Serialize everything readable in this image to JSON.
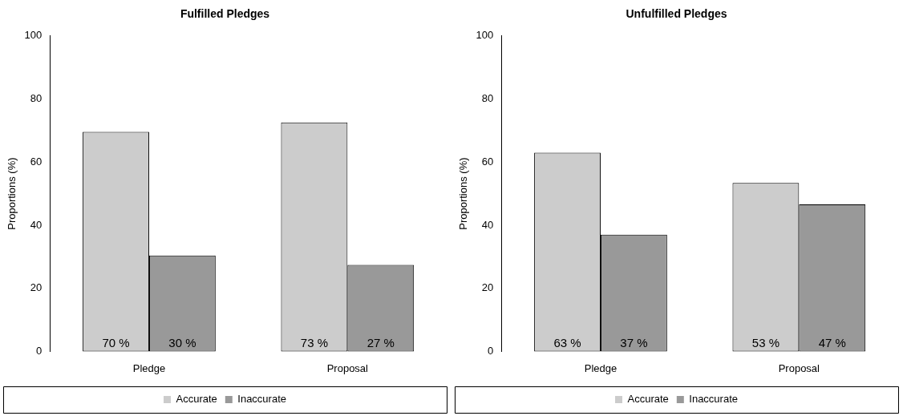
{
  "chart_data": [
    {
      "type": "bar",
      "title": "Fulfilled Pledges",
      "ylabel": "Proportions (%)",
      "categories": [
        "Pledge",
        "Proposal"
      ],
      "ylim": [
        0,
        100
      ],
      "yticks": [
        0,
        20,
        40,
        60,
        80,
        100
      ],
      "grid": false,
      "legend": "bottom",
      "series": [
        {
          "name": "Accurate",
          "color": "#cccccc",
          "values": [
            69.6,
            72.6
          ],
          "value_labels": [
            "70 %",
            "73 %"
          ]
        },
        {
          "name": "Inaccurate",
          "color": "#999999",
          "values": [
            30.4,
            27.4
          ],
          "value_labels": [
            "30 %",
            "27 %"
          ]
        }
      ]
    },
    {
      "type": "bar",
      "title": "Unfulfilled Pledges",
      "ylabel": "Proportions (%)",
      "categories": [
        "Pledge",
        "Proposal"
      ],
      "ylim": [
        0,
        100
      ],
      "yticks": [
        0,
        20,
        40,
        60,
        80,
        100
      ],
      "grid": false,
      "legend": "bottom",
      "series": [
        {
          "name": "Accurate",
          "color": "#cccccc",
          "values": [
            63,
            53.4
          ],
          "value_labels": [
            "63 %",
            "53 %"
          ]
        },
        {
          "name": "Inaccurate",
          "color": "#999999",
          "values": [
            37,
            46.6
          ],
          "value_labels": [
            "37 %",
            "47 %"
          ]
        }
      ]
    }
  ]
}
